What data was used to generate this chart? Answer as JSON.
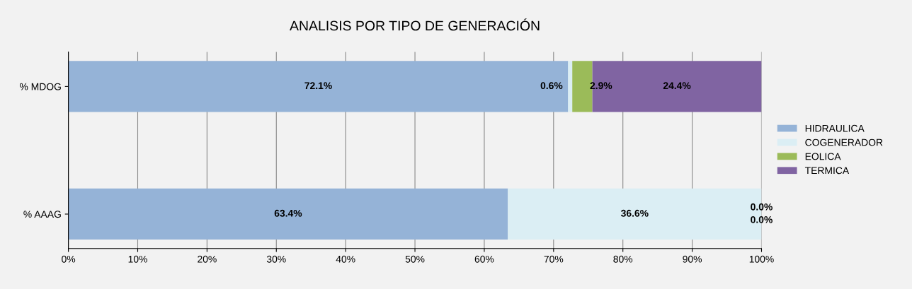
{
  "chart_data": {
    "type": "bar",
    "title": "ANALISIS POR TIPO DE GENERACIÓN",
    "orientation": "horizontal",
    "stacked": true,
    "categories": [
      "% MDOG",
      "% AAAG"
    ],
    "series": [
      {
        "name": "HIDRAULICA",
        "color": "#95b3d7",
        "values": [
          72.1,
          63.4
        ],
        "value_labels": [
          "72.1%",
          "63.4%"
        ]
      },
      {
        "name": "COGENERADOR",
        "color": "#dbeef4",
        "values": [
          0.6,
          36.6
        ],
        "value_labels": [
          "0.6%",
          "36.6%"
        ]
      },
      {
        "name": "EOLICA",
        "color": "#9bbb59",
        "values": [
          2.9,
          0.0
        ],
        "value_labels": [
          "2.9%",
          "0.0%"
        ]
      },
      {
        "name": "TERMICA",
        "color": "#8064a2",
        "values": [
          24.4,
          0.0
        ],
        "value_labels": [
          "24.4%",
          "0.0%"
        ]
      }
    ],
    "xlim": [
      0,
      100
    ],
    "xticks": [
      {
        "value": 0,
        "label": "0%"
      },
      {
        "value": 10,
        "label": "10%"
      },
      {
        "value": 20,
        "label": "20%"
      },
      {
        "value": 30,
        "label": "30%"
      },
      {
        "value": 40,
        "label": "40%"
      },
      {
        "value": 50,
        "label": "50%"
      },
      {
        "value": 60,
        "label": "60%"
      },
      {
        "value": 70,
        "label": "70%"
      },
      {
        "value": 80,
        "label": "80%"
      },
      {
        "value": 90,
        "label": "90%"
      },
      {
        "value": 100,
        "label": "100%"
      }
    ],
    "grid": "x",
    "legend": "right"
  }
}
